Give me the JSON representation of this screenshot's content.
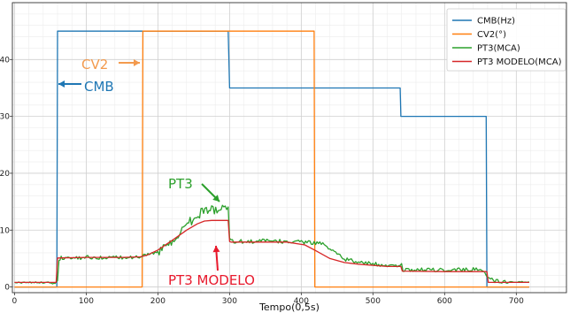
{
  "chart_data": {
    "type": "line",
    "title": "",
    "xlabel": "Tempo(0,5s)",
    "ylabel": "",
    "xlim": [
      -3,
      770
    ],
    "ylim": [
      -1,
      50
    ],
    "x_ticks": [
      0,
      100,
      200,
      300,
      400,
      500,
      600,
      700
    ],
    "y_ticks": [
      0,
      10,
      20,
      30,
      40
    ],
    "y_tick_labels": [
      "0",
      "10",
      "20",
      "30",
      "40"
    ],
    "grid": true,
    "minor_grid": true,
    "legend_position": "top-right",
    "series": [
      {
        "name": "CMB(Hz)",
        "color": "#1f77b4",
        "x": [
          0,
          59,
          60,
          298,
          299,
          300,
          538,
          539,
          658,
          659,
          718
        ],
        "y": [
          0,
          0,
          45,
          45,
          40,
          35,
          35,
          30,
          30,
          0,
          0
        ]
      },
      {
        "name": "CV2(°)",
        "color": "#ff7f0e",
        "x": [
          0,
          178,
          179,
          418,
          419,
          718
        ],
        "y": [
          0,
          0,
          45,
          45,
          0,
          0
        ]
      },
      {
        "name": "PT3(MCA)",
        "color": "#2ca02c",
        "x": [
          0,
          45,
          55,
          60,
          62,
          65,
          100,
          140,
          170,
          180,
          200,
          215,
          230,
          245,
          260,
          275,
          290,
          298,
          300,
          302,
          320,
          350,
          380,
          420,
          430,
          440,
          460,
          480,
          520,
          540,
          542,
          560,
          600,
          640,
          650,
          660,
          670,
          680,
          700,
          718
        ],
        "y": [
          0.8,
          0.8,
          0.6,
          1.0,
          4.9,
          5.1,
          5.2,
          5.1,
          5.2,
          5.4,
          6.0,
          7.6,
          9.5,
          11.5,
          13.0,
          13.5,
          13.6,
          13.5,
          8.3,
          8.0,
          8.0,
          8.1,
          8.0,
          7.8,
          7.5,
          6.5,
          4.9,
          4.3,
          3.8,
          3.8,
          3.0,
          3.0,
          3.0,
          3.1,
          3.0,
          2.0,
          1.0,
          1.0,
          0.9,
          0.9
        ]
      },
      {
        "name": "PT3 MODELO(MCA)",
        "color": "#d62728",
        "x": [
          0,
          58,
          60,
          100,
          150,
          175,
          185,
          200,
          220,
          240,
          255,
          265,
          275,
          298,
          300,
          302,
          380,
          405,
          420,
          440,
          460,
          480,
          520,
          539,
          541,
          600,
          659,
          661,
          718
        ],
        "y": [
          0.8,
          0.8,
          5.1,
          5.2,
          5.2,
          5.3,
          5.6,
          6.5,
          8.2,
          10.0,
          11.1,
          11.6,
          11.7,
          11.7,
          8.0,
          7.9,
          7.9,
          7.4,
          6.4,
          5.0,
          4.3,
          4.0,
          3.6,
          3.6,
          2.8,
          2.7,
          2.7,
          0.8,
          0.8
        ]
      }
    ],
    "annotations": [
      {
        "text": "CV2",
        "color": "#f39a4d"
      },
      {
        "text": "CMB",
        "color": "#1f77b4"
      },
      {
        "text": "PT3",
        "color": "#2ca02c"
      },
      {
        "text": "PT3 MODELO",
        "color": "#e8192c"
      }
    ]
  }
}
